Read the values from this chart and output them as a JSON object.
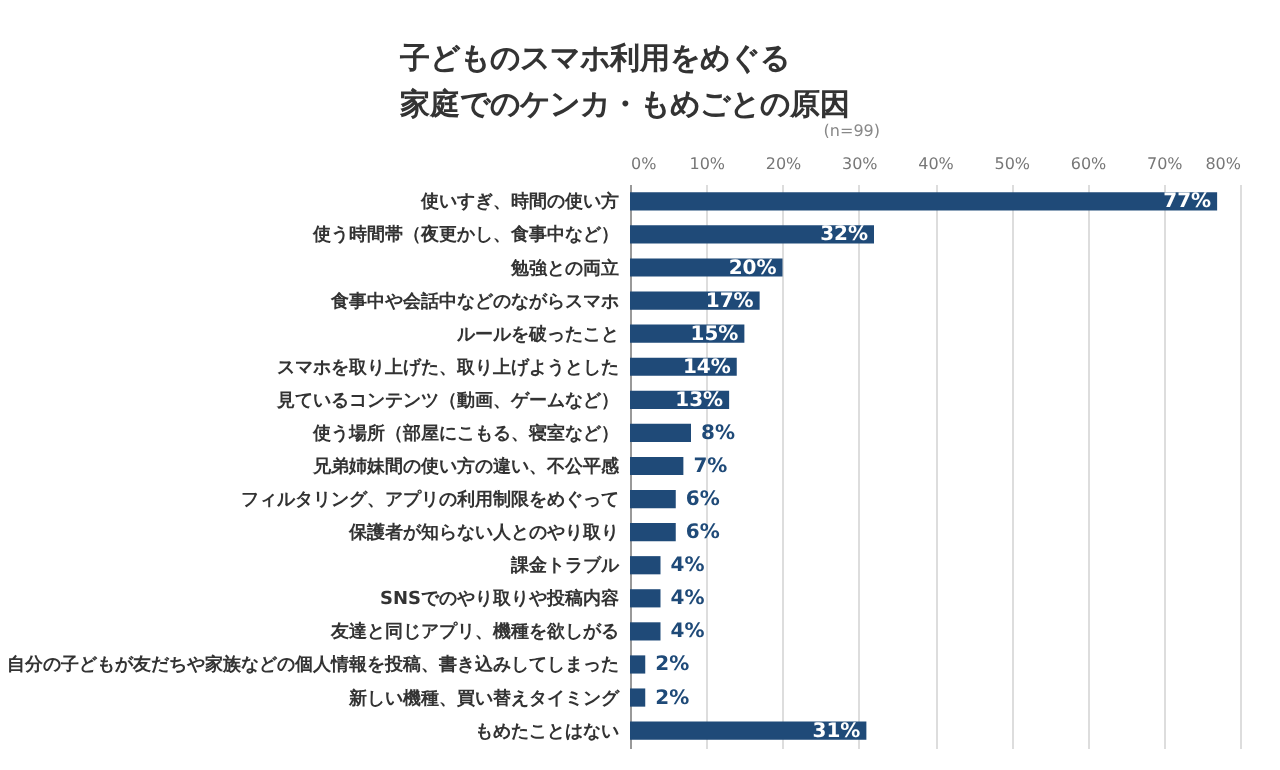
{
  "chart_data": {
    "type": "bar",
    "orientation": "horizontal",
    "title": "子どものスマホ利用をめぐる",
    "subtitle": "家庭でのケンカ・もめごとの原因",
    "annotations": [
      "(n=99)"
    ],
    "categories": [
      "使いすぎ、時間の使い方",
      "使う時間帯（夜更かし、食事中など）",
      "勉強との両立",
      "食事中や会話中などのながらスマホ",
      "ルールを破ったこと",
      "スマホを取り上げた、取り上げようとした",
      "見ているコンテンツ（動画、ゲームなど）",
      "使う場所（部屋にこもる、寝室など）",
      "兄弟姉妹間の使い方の違い、不公平感",
      "フィルタリング、アプリの利用制限をめぐって",
      "保護者が知らない人とのやり取り",
      "課金トラブル",
      "SNSでのやり取りや投稿内容",
      "友達と同じアプリ、機種を欲しがる",
      "自分の子どもが友だちや家族などの個人情報を投稿、書き込みしてしまった",
      "新しい機種、買い替えタイミング",
      "もめたことはない"
    ],
    "values": [
      77,
      32,
      20,
      17,
      15,
      14,
      13,
      8,
      7,
      6,
      6,
      4,
      4,
      4,
      2,
      2,
      31
    ],
    "value_labels": [
      "77%",
      "32%",
      "20%",
      "17%",
      "15%",
      "14%",
      "13%",
      "8%",
      "7%",
      "6%",
      "6%",
      "4%",
      "4%",
      "4%",
      "2%",
      "2%",
      "31%"
    ],
    "color": "#1f4a78",
    "xlim": [
      0,
      80
    ],
    "xticks": [
      {
        "value": 0,
        "label": "0%"
      },
      {
        "value": 10,
        "label": "10%"
      },
      {
        "value": 20,
        "label": "20%"
      },
      {
        "value": 30,
        "label": "30%"
      },
      {
        "value": 40,
        "label": "40%"
      },
      {
        "value": 50,
        "label": "50%"
      },
      {
        "value": 60,
        "label": "60%"
      },
      {
        "value": 70,
        "label": "70%"
      },
      {
        "value": 80,
        "label": "80%"
      }
    ],
    "grid": "x"
  }
}
